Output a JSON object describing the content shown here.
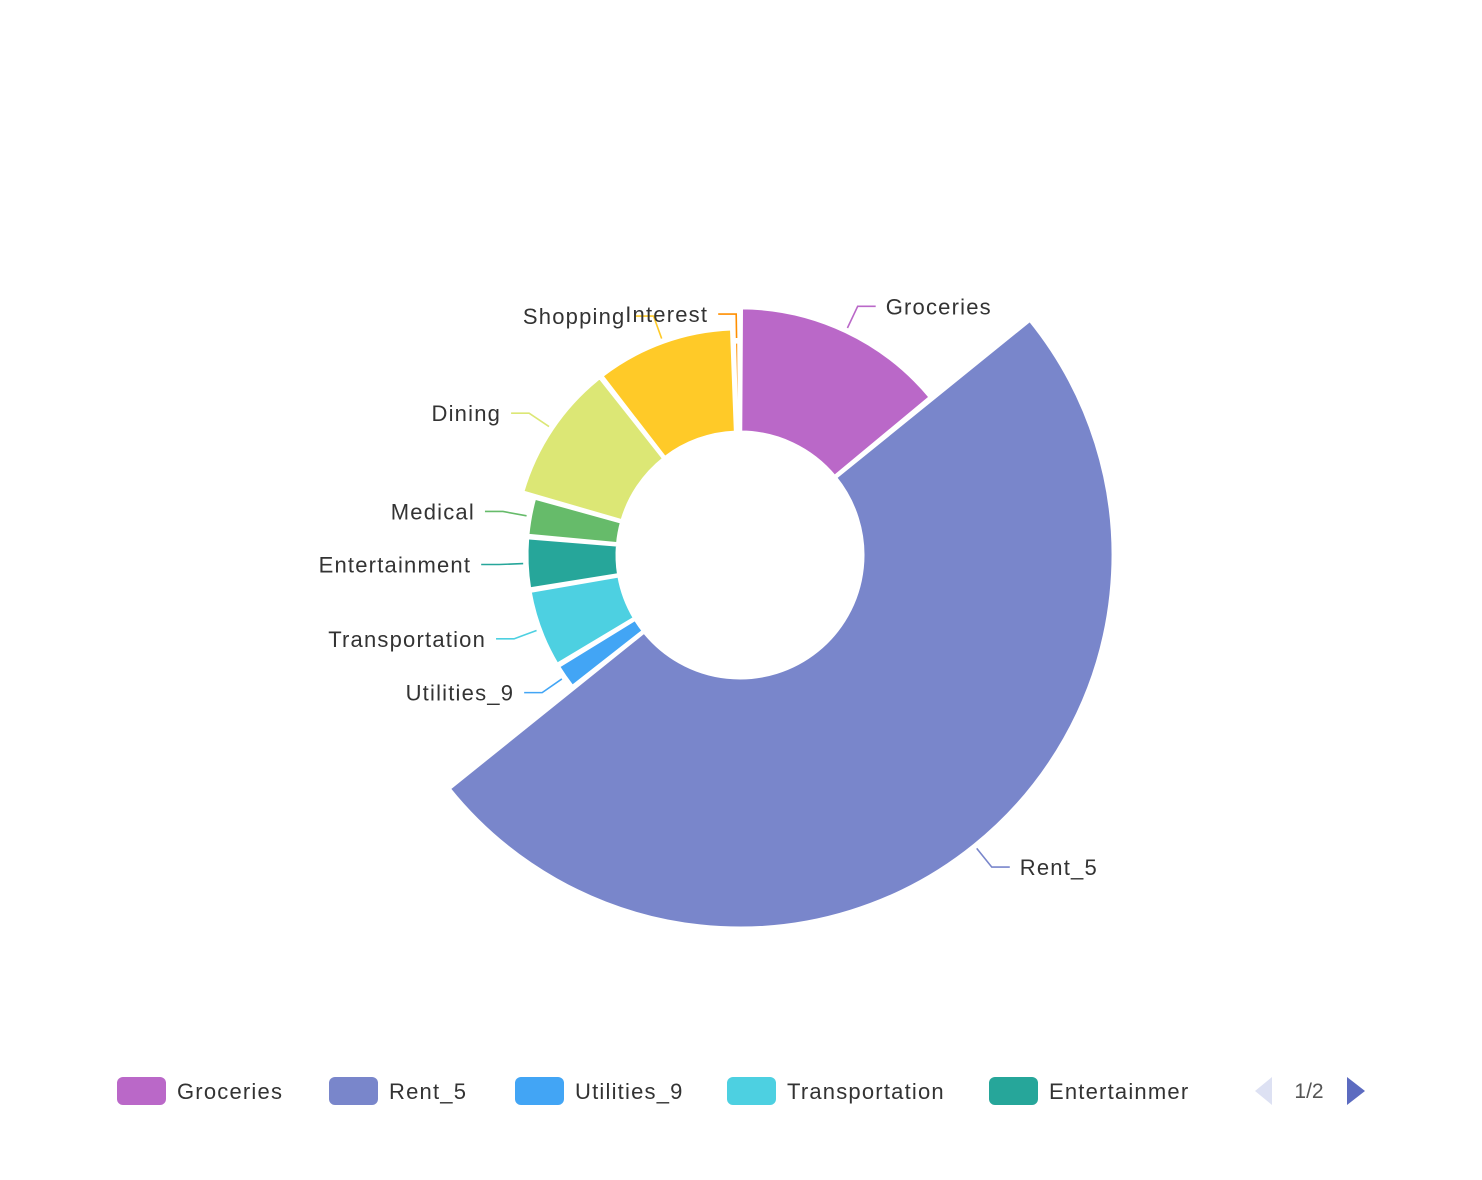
{
  "chart_data": {
    "type": "pie",
    "variant": "rose-donut",
    "slices": [
      {
        "name": "Groceries",
        "value": 14,
        "color": "#ba68c8"
      },
      {
        "name": "Rent_5",
        "value": 50,
        "color": "#7986cb"
      },
      {
        "name": "Utilities_9",
        "value": 2,
        "color": "#42a5f5"
      },
      {
        "name": "Transportation",
        "value": 6,
        "color": "#4dd0e1"
      },
      {
        "name": "Entertainment",
        "value": 4,
        "color": "#26a69a"
      },
      {
        "name": "Medical",
        "value": 3,
        "color": "#66bb6a"
      },
      {
        "name": "Dining",
        "value": 10,
        "color": "#dce775"
      },
      {
        "name": "Shopping",
        "value": 10,
        "color": "#ffca28"
      },
      {
        "name": "Interest",
        "value": 0.5,
        "color": "#ff8f00"
      }
    ],
    "legend": {
      "position": "bottom",
      "visible_items": [
        {
          "label": "Groceries",
          "color": "#ba68c8"
        },
        {
          "label": "Rent_5",
          "color": "#7986cb"
        },
        {
          "label": "Utilities_9",
          "color": "#42a5f5"
        },
        {
          "label": "Transportation",
          "color": "#4dd0e1"
        },
        {
          "label": "Entertainmer",
          "color": "#26a69a"
        }
      ],
      "page_text": "1/2"
    }
  }
}
